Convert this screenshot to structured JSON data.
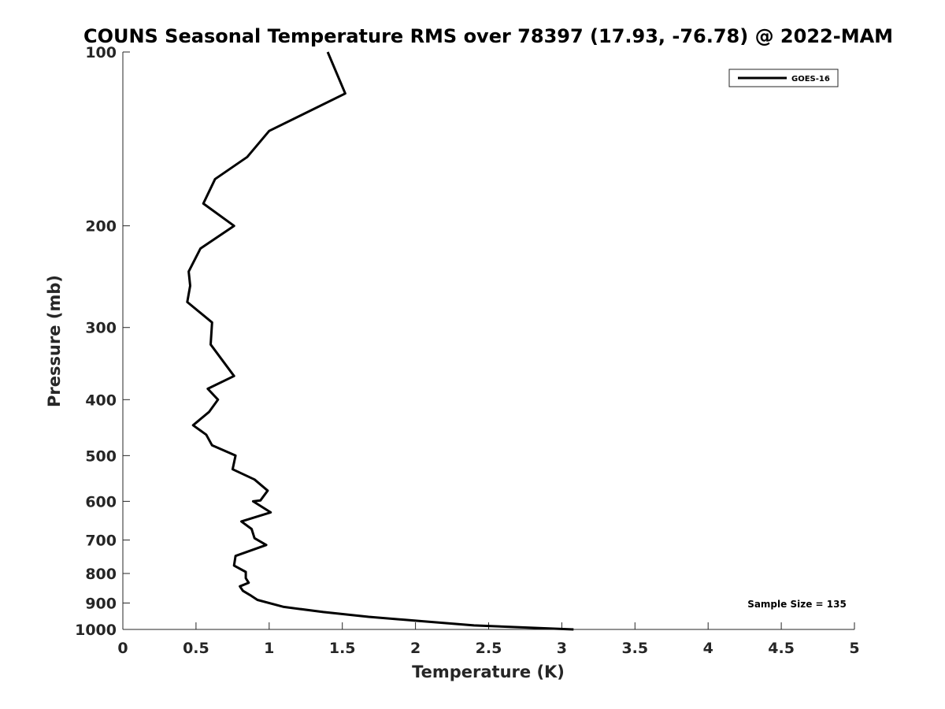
{
  "chart_data": {
    "type": "line",
    "title": "COUNS Seasonal Temperature RMS over 78397 (17.93, -76.78) @ 2022-MAM",
    "xlabel": "Temperature (K)",
    "ylabel": "Pressure (mb)",
    "xlim": [
      0,
      5
    ],
    "ylim": [
      100,
      1000
    ],
    "y_scale": "log",
    "y_reversed": true,
    "x_ticks": [
      "0",
      "0.5",
      "1",
      "1.5",
      "2",
      "2.5",
      "3",
      "3.5",
      "4",
      "4.5",
      "5"
    ],
    "y_ticks": [
      "100",
      "200",
      "300",
      "400",
      "500",
      "600",
      "700",
      "800",
      "900",
      "1000"
    ],
    "grid": false,
    "legend": {
      "position": "top-right",
      "entries": [
        "GOES-16"
      ]
    },
    "annotation": "Sample Size = 135",
    "series": [
      {
        "name": "GOES-16",
        "color": "#000000",
        "x": [
          1.4,
          1.52,
          1.0,
          0.85,
          0.63,
          0.55,
          0.76,
          0.53,
          0.45,
          0.46,
          0.44,
          0.61,
          0.6,
          0.76,
          0.58,
          0.65,
          0.59,
          0.48,
          0.57,
          0.61,
          0.77,
          0.75,
          0.9,
          0.99,
          0.94,
          0.89,
          1.01,
          0.81,
          0.88,
          0.9,
          0.98,
          0.77,
          0.76,
          0.84,
          0.84,
          0.86,
          0.8,
          0.82,
          0.87,
          0.92,
          1.1,
          1.37,
          1.68,
          2.05,
          2.4,
          3.08
        ],
        "y": [
          100,
          118,
          137,
          152,
          166,
          183,
          200,
          219,
          240,
          254,
          271,
          294,
          321,
          364,
          383,
          400,
          420,
          443,
          460,
          480,
          500,
          528,
          550,
          575,
          598,
          600,
          627,
          650,
          670,
          695,
          714,
          746,
          775,
          795,
          815,
          830,
          842,
          857,
          872,
          889,
          914,
          933,
          951,
          968,
          984,
          1000
        ]
      }
    ]
  }
}
